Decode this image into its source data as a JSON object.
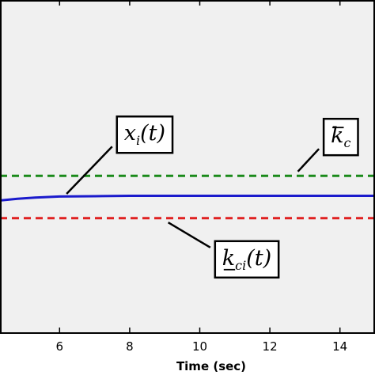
{
  "chart_data": {
    "type": "line",
    "title": "",
    "xlabel": "Time (sec)",
    "ylabel": "",
    "xlim": [
      4.3,
      15.0
    ],
    "ylim": [
      0,
      1
    ],
    "x_ticks": [
      6,
      8,
      10,
      12,
      14
    ],
    "grid": false,
    "background": "#f0f0f0",
    "series": [
      {
        "label": "k̄ci(t)",
        "color": "#1a8a1a",
        "dash": "dashed",
        "points": [
          [
            4.3,
            0.472
          ],
          [
            15.0,
            0.472
          ]
        ]
      },
      {
        "label": "xi(t)",
        "color": "#1a1acc",
        "dash": "solid",
        "points": [
          [
            4.3,
            0.398
          ],
          [
            4.8,
            0.403
          ],
          [
            5.3,
            0.407
          ],
          [
            6.0,
            0.41
          ],
          [
            7.0,
            0.411
          ],
          [
            8.0,
            0.412
          ],
          [
            15.0,
            0.412
          ]
        ]
      },
      {
        "label": "k_ci(t)",
        "color": "#e02020",
        "dash": "dashed",
        "points": [
          [
            4.3,
            0.345
          ],
          [
            15.0,
            0.345
          ]
        ]
      }
    ],
    "annotations": [
      {
        "series": "xi(t)",
        "main": "x",
        "sub": "i",
        "arg": "(t)",
        "accent": "none",
        "leader": [
          [
            6.2,
            0.418
          ],
          [
            7.5,
            0.56
          ]
        ]
      },
      {
        "series": "k̄ci(t)",
        "main": "k",
        "sub": "c",
        "arg": "",
        "accent": "overbar",
        "leader": [
          [
            12.8,
            0.485
          ],
          [
            13.4,
            0.553
          ]
        ]
      },
      {
        "series": "k_ci(t)",
        "main": "k",
        "sub": "ci",
        "arg": "(t)",
        "accent": "underbar",
        "leader": [
          [
            9.1,
            0.332
          ],
          [
            10.3,
            0.257
          ]
        ]
      }
    ]
  }
}
